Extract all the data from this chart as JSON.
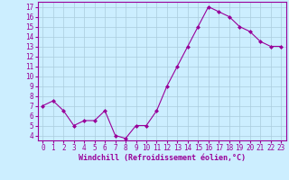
{
  "x": [
    0,
    1,
    2,
    3,
    4,
    5,
    6,
    7,
    8,
    9,
    10,
    11,
    12,
    13,
    14,
    15,
    16,
    17,
    18,
    19,
    20,
    21,
    22,
    23
  ],
  "y": [
    7.0,
    7.5,
    6.5,
    5.0,
    5.5,
    5.5,
    6.5,
    4.0,
    3.7,
    5.0,
    5.0,
    6.5,
    9.0,
    11.0,
    13.0,
    15.0,
    17.0,
    16.5,
    16.0,
    15.0,
    14.5,
    13.5,
    13.0,
    13.0
  ],
  "line_color": "#990099",
  "marker": "D",
  "marker_size": 2,
  "bg_color": "#cceeff",
  "grid_color": "#aaccdd",
  "xlabel": "Windchill (Refroidissement éolien,°C)",
  "xlabel_color": "#990099",
  "tick_color": "#990099",
  "label_color": "#990099",
  "ylim": [
    3.5,
    17.5
  ],
  "xlim": [
    -0.5,
    23.5
  ],
  "yticks": [
    4,
    5,
    6,
    7,
    8,
    9,
    10,
    11,
    12,
    13,
    14,
    15,
    16,
    17
  ],
  "xticks": [
    0,
    1,
    2,
    3,
    4,
    5,
    6,
    7,
    8,
    9,
    10,
    11,
    12,
    13,
    14,
    15,
    16,
    17,
    18,
    19,
    20,
    21,
    22,
    23
  ],
  "tick_fontsize": 5.5,
  "xlabel_fontsize": 6.0
}
